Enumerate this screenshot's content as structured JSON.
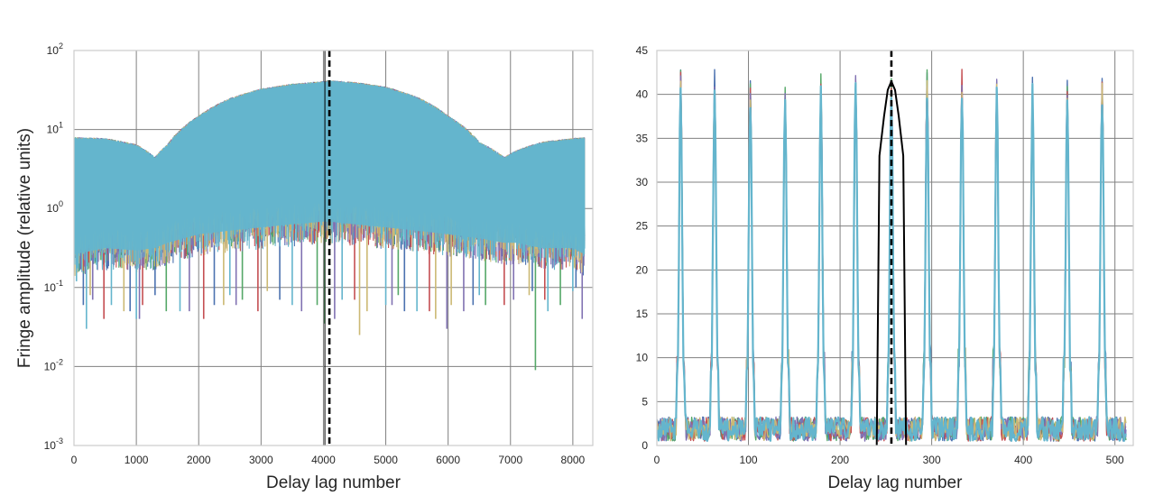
{
  "chart_data": [
    {
      "type": "line",
      "xlabel": "Delay lag number",
      "ylabel": "Fringe amplitude (relative units)",
      "yscale": "log",
      "xlim": [
        0,
        8320
      ],
      "ylim": [
        0.001,
        100
      ],
      "xticks": [
        "0",
        "1000",
        "2000",
        "3000",
        "4000",
        "5000",
        "6000",
        "7000",
        "8000"
      ],
      "yticks": [
        {
          "base": "10",
          "exp": "-3"
        },
        {
          "base": "10",
          "exp": "-2"
        },
        {
          "base": "10",
          "exp": "-1"
        },
        {
          "base": "10",
          "exp": "0"
        },
        {
          "base": "10",
          "exp": "1"
        },
        {
          "base": "10",
          "exp": "2"
        }
      ],
      "grid": true,
      "reference_line_x": 4096,
      "envelope": {
        "x": [
          0,
          500,
          1000,
          1300,
          1500,
          2000,
          2500,
          3000,
          3500,
          4000,
          4096,
          4500,
          5000,
          5500,
          6000,
          6500,
          6900,
          7100,
          7500,
          8000,
          8192
        ],
        "upper": [
          8,
          7.8,
          6.5,
          4.5,
          6.5,
          15,
          25,
          33,
          38,
          41,
          42,
          40,
          35,
          26,
          15,
          7,
          4.5,
          5.5,
          7,
          7.8,
          8
        ],
        "lower": [
          0.25,
          0.3,
          0.28,
          0.3,
          0.35,
          0.45,
          0.5,
          0.55,
          0.6,
          0.65,
          0.65,
          0.6,
          0.55,
          0.5,
          0.45,
          0.4,
          0.35,
          0.35,
          0.3,
          0.3,
          0.25
        ]
      },
      "series": [
        {
          "color": "#4c72b0",
          "dips": [
            [
              150,
              0.06
            ],
            [
              900,
              0.05
            ],
            [
              1300,
              0.08
            ],
            [
              2250,
              0.06
            ],
            [
              3300,
              0.07
            ],
            [
              5300,
              0.05
            ],
            [
              6400,
              0.06
            ],
            [
              7350,
              0.09
            ],
            [
              8050,
              0.1
            ]
          ]
        },
        {
          "color": "#55a868",
          "dips": [
            [
              1480,
              0.05
            ],
            [
              2700,
              0.07
            ],
            [
              3900,
              0.06
            ],
            [
              4020,
              0.035
            ],
            [
              5200,
              0.08
            ],
            [
              6600,
              0.06
            ],
            [
              7400,
              0.009
            ],
            [
              7800,
              0.06
            ]
          ]
        },
        {
          "color": "#c44e52",
          "dips": [
            [
              480,
              0.04
            ],
            [
              1100,
              0.06
            ],
            [
              2080,
              0.04
            ],
            [
              2950,
              0.05
            ],
            [
              4500,
              0.07
            ],
            [
              5700,
              0.05
            ],
            [
              6900,
              0.06
            ],
            [
              7550,
              0.07
            ]
          ]
        },
        {
          "color": "#8172b2",
          "dips": [
            [
              300,
              0.07
            ],
            [
              1050,
              0.04
            ],
            [
              1850,
              0.05
            ],
            [
              2600,
              0.06
            ],
            [
              3650,
              0.05
            ],
            [
              4180,
              0.04
            ],
            [
              5100,
              0.06
            ],
            [
              5980,
              0.03
            ],
            [
              6250,
              0.05
            ],
            [
              7050,
              0.07
            ],
            [
              8150,
              0.04
            ]
          ]
        },
        {
          "color": "#ccb974",
          "dips": [
            [
              260,
              0.08
            ],
            [
              800,
              0.05
            ],
            [
              2400,
              0.06
            ],
            [
              3100,
              0.09
            ],
            [
              4700,
              0.05
            ],
            [
              4580,
              0.025
            ],
            [
              5800,
              0.04
            ],
            [
              6050,
              0.06
            ],
            [
              7300,
              0.08
            ]
          ]
        },
        {
          "color": "#64b5cd",
          "dips": [
            [
              40,
              0.12
            ],
            [
              200,
              0.03
            ],
            [
              600,
              0.06
            ],
            [
              1000,
              0.04
            ],
            [
              1700,
              0.05
            ],
            [
              2500,
              0.08
            ],
            [
              3500,
              0.06
            ],
            [
              4300,
              0.07
            ],
            [
              5000,
              0.06
            ],
            [
              5500,
              0.05
            ],
            [
              6500,
              0.08
            ],
            [
              7600,
              0.05
            ],
            [
              8000,
              0.09
            ]
          ]
        }
      ]
    },
    {
      "type": "line",
      "xlabel": "Delay lag number",
      "ylabel": "",
      "xlim": [
        0,
        520
      ],
      "ylim": [
        0,
        45
      ],
      "xticks": [
        "0",
        "100",
        "200",
        "300",
        "400",
        "500"
      ],
      "yticks": [
        "0",
        "5",
        "10",
        "15",
        "20",
        "25",
        "30",
        "35",
        "40",
        "45"
      ],
      "grid": true,
      "reference_line_x": 256,
      "peaks": [
        {
          "x": 26,
          "y": 41.5
        },
        {
          "x": 63,
          "y": 41.3
        },
        {
          "x": 102,
          "y": 40.8
        },
        {
          "x": 140,
          "y": 40.0
        },
        {
          "x": 179,
          "y": 41.0
        },
        {
          "x": 217,
          "y": 41.2
        },
        {
          "x": 256,
          "y": 41.3
        },
        {
          "x": 295,
          "y": 41.8
        },
        {
          "x": 333,
          "y": 41.2
        },
        {
          "x": 371,
          "y": 40.8
        },
        {
          "x": 410,
          "y": 40.2
        },
        {
          "x": 448,
          "y": 40.8
        },
        {
          "x": 486,
          "y": 41.0
        }
      ],
      "baseline_range": [
        0.5,
        3.0
      ],
      "window_curve": {
        "x": [
          240,
          243,
          248,
          252,
          256,
          260,
          264,
          269,
          272
        ],
        "y": [
          0,
          33,
          37.5,
          40.5,
          41.5,
          40.5,
          37.5,
          33,
          0
        ]
      },
      "series": [
        {
          "color": "#4c72b0"
        },
        {
          "color": "#55a868"
        },
        {
          "color": "#c44e52"
        },
        {
          "color": "#8172b2"
        },
        {
          "color": "#ccb974"
        },
        {
          "color": "#64b5cd"
        }
      ],
      "window_color": "#000000"
    }
  ]
}
